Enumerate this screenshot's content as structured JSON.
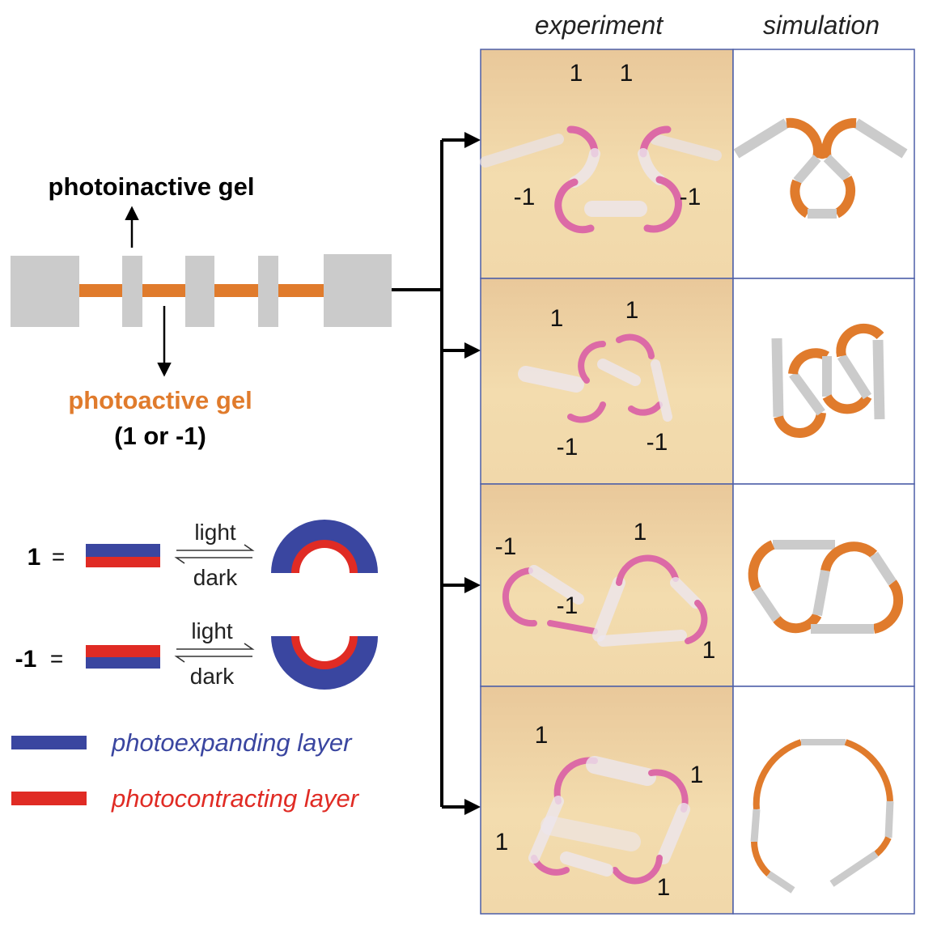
{
  "column_headers": {
    "experiment": "experiment",
    "simulation": "simulation"
  },
  "strip": {
    "photoinactive_label": "photoinactive gel",
    "photoactive_label": "photoactive gel",
    "photoactive_values": "(1 or -1)"
  },
  "legend": {
    "plus_one": {
      "value": "1",
      "equals": "=",
      "light": "light",
      "dark": "dark"
    },
    "minus_one": {
      "value": "-1",
      "equals": "=",
      "light": "light",
      "dark": "dark"
    },
    "photoexpanding": "photoexpanding layer",
    "photocontracting": "photocontracting layer"
  },
  "rows": [
    {
      "labels": [
        "1",
        "1",
        "-1",
        "-1"
      ]
    },
    {
      "labels": [
        "1",
        "1",
        "-1",
        "-1"
      ]
    },
    {
      "labels": [
        "-1",
        "1",
        "-1",
        "1"
      ]
    },
    {
      "labels": [
        "1",
        "1",
        "1",
        "1"
      ]
    }
  ],
  "colors": {
    "orange": "#e07b2c",
    "gray": "#cbcbcb",
    "blue": "#3a46a0",
    "red": "#e02b24",
    "panel_bg": "#f1d9a8",
    "pink": "#d86aa0",
    "panel_border": "#4d5fa8"
  }
}
